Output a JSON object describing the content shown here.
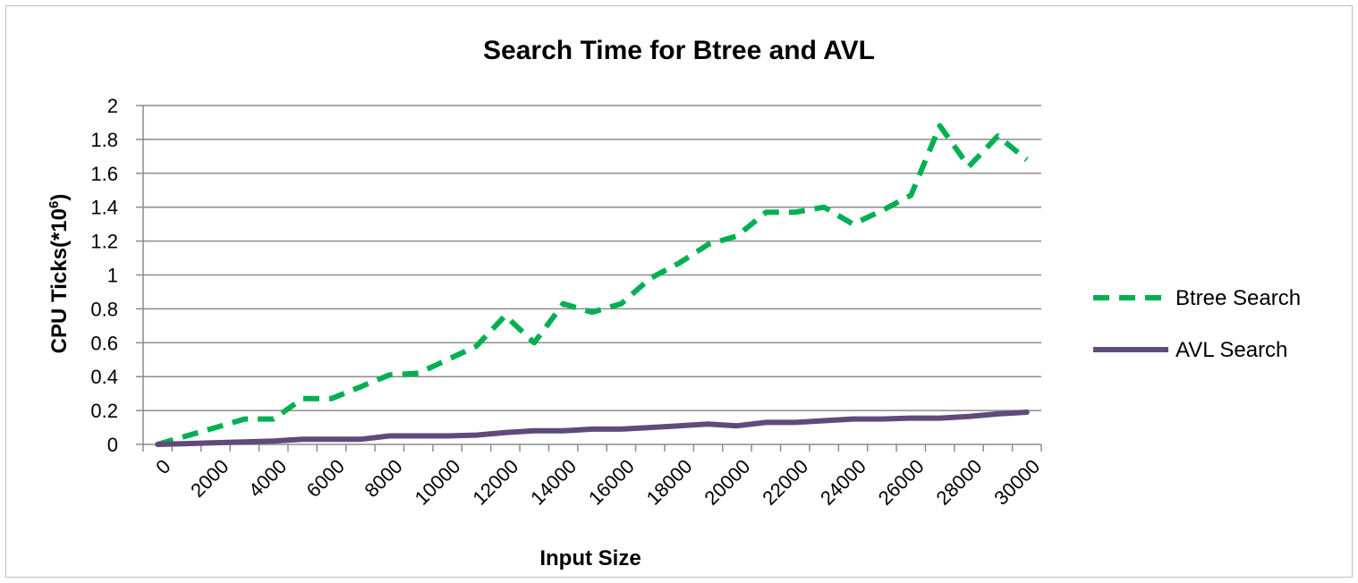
{
  "chart_data": {
    "type": "line",
    "title": "Search Time for Btree and AVL",
    "xlabel": "Input Size",
    "ylabel_main": "CPU Ticks(*10",
    "ylabel_sup": "6",
    "ylabel_close": ")",
    "ylim": [
      0,
      2
    ],
    "y_ticks": [
      "0",
      "0.2",
      "0.4",
      "0.6",
      "0.8",
      "1",
      "1.2",
      "1.4",
      "1.6",
      "1.8",
      "2"
    ],
    "x_ticks": [
      "0",
      "2000",
      "4000",
      "6000",
      "8000",
      "10000",
      "12000",
      "14000",
      "16000",
      "18000",
      "20000",
      "22000",
      "24000",
      "26000",
      "28000",
      "30000"
    ],
    "legend_position": "right",
    "grid": true,
    "series": [
      {
        "name": "Btree Search",
        "color": "#00b050",
        "dash": "dashed",
        "values": [
          0.0,
          0.05,
          0.1,
          0.15,
          0.15,
          0.27,
          0.27,
          0.34,
          0.41,
          0.42,
          0.5,
          0.58,
          0.76,
          0.6,
          0.83,
          0.78,
          0.83,
          0.98,
          1.07,
          1.18,
          1.23,
          1.37,
          1.37,
          1.4,
          1.3,
          1.38,
          1.47,
          1.88,
          1.64,
          1.82,
          1.68
        ]
      },
      {
        "name": "AVL Search",
        "color": "#604a7b",
        "dash": "solid",
        "values": [
          0.0,
          0.005,
          0.01,
          0.015,
          0.02,
          0.03,
          0.03,
          0.03,
          0.05,
          0.05,
          0.05,
          0.055,
          0.07,
          0.08,
          0.08,
          0.09,
          0.09,
          0.1,
          0.11,
          0.12,
          0.11,
          0.13,
          0.13,
          0.14,
          0.15,
          0.15,
          0.155,
          0.155,
          0.165,
          0.18,
          0.19
        ]
      }
    ]
  }
}
